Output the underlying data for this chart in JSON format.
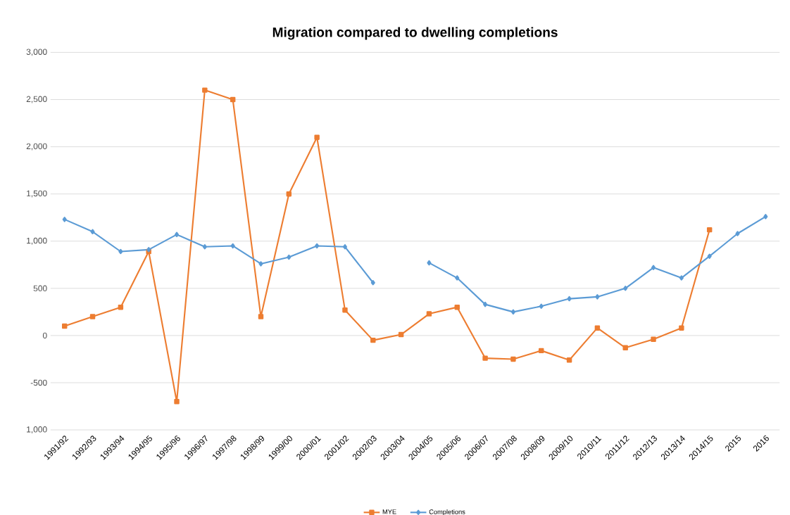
{
  "chart_data": {
    "type": "line",
    "title": "Migration compared to dwelling completions",
    "categories": [
      "1991/92",
      "1992/93",
      "1993/94",
      "1994/95",
      "1995/96",
      "1996/97",
      "1997/98",
      "1998/99",
      "1999/00",
      "2000/01",
      "2001/02",
      "2002/03",
      "2003/04",
      "2004/05",
      "2005/06",
      "2006/07",
      "2007/08",
      "2008/09",
      "2009/10",
      "2010/11",
      "2011/12",
      "2012/13",
      "2013/14",
      "2014/15",
      "2015",
      "2016"
    ],
    "series": [
      {
        "name": "MYE",
        "color": "#ed7d31",
        "marker": "square",
        "values": [
          100,
          200,
          300,
          890,
          -700,
          2600,
          2500,
          200,
          1500,
          2100,
          270,
          -50,
          10,
          230,
          300,
          -240,
          -250,
          -160,
          -260,
          80,
          -130,
          -40,
          80,
          1120,
          null,
          null
        ]
      },
      {
        "name": "Completions",
        "color": "#5b9bd5",
        "marker": "diamond",
        "values": [
          1230,
          1100,
          890,
          910,
          1070,
          940,
          950,
          760,
          830,
          950,
          940,
          560,
          null,
          770,
          610,
          330,
          250,
          310,
          390,
          410,
          500,
          720,
          610,
          840,
          1080,
          1260
        ]
      }
    ],
    "ylim": [
      -1000,
      3000
    ],
    "yticks": [
      {
        "value": -1000,
        "label": "1,000"
      },
      {
        "value": -500,
        "label": "-500"
      },
      {
        "value": 0,
        "label": "0"
      },
      {
        "value": 500,
        "label": "500"
      },
      {
        "value": 1000,
        "label": "1,000"
      },
      {
        "value": 1500,
        "label": "1,500"
      },
      {
        "value": 2000,
        "label": "2,000"
      },
      {
        "value": 2500,
        "label": "2,500"
      },
      {
        "value": 3000,
        "label": "3,000"
      }
    ],
    "grid": "y",
    "legend": "bottom",
    "line_style": "solid"
  }
}
